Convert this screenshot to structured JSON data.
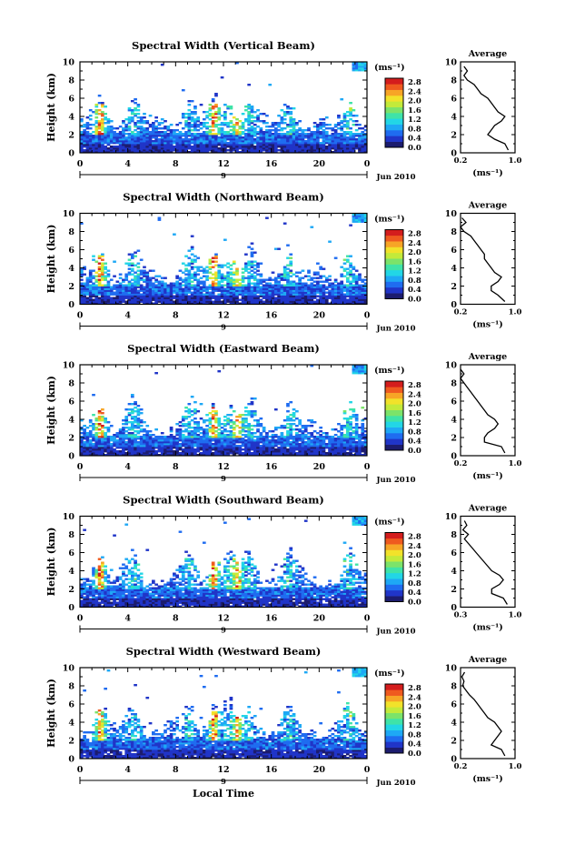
{
  "figure": {
    "xlabel": "Local Time",
    "x_tick_labels": [
      "0",
      "4",
      "8",
      "12",
      "16",
      "20",
      "0"
    ],
    "date_label": "Jun 2010",
    "date_marker": "9",
    "profile_title": "Average",
    "colorbar_unit": "(ms⁻¹)",
    "colorbar_ticks": [
      "2.8",
      "2.4",
      "2.0",
      "1.6",
      "1.2",
      "0.8",
      "0.4",
      "0.0"
    ],
    "colormap": [
      "#1c1c6e",
      "#2035c8",
      "#1f6cf0",
      "#1ea8f5",
      "#22d6e6",
      "#3fe3a8",
      "#7ce36a",
      "#c3ea3a",
      "#f2e22a",
      "#f7a526",
      "#ef5a1f",
      "#d41d1d"
    ]
  },
  "chart_data": [
    {
      "type": "heatmap",
      "title": "Spectral Width (Vertical Beam)",
      "ylabel": "Height (km)",
      "xlabel": "",
      "xlim": [
        0,
        24
      ],
      "ylim": [
        0,
        10
      ],
      "y_tick_labels": [
        "0",
        "2",
        "4",
        "6",
        "8",
        "10"
      ],
      "colorbar_range": [
        0.0,
        3.0
      ],
      "profile": {
        "xlabel": "(ms⁻¹)",
        "x_tick_labels": [
          "0.2",
          "1.0"
        ],
        "xlim": [
          0.2,
          1.0
        ],
        "y_tick_labels": [
          "0",
          "2",
          "4",
          "6",
          "8",
          "10"
        ],
        "heights": [
          0.3,
          1.0,
          1.5,
          2.0,
          2.5,
          3.0,
          3.5,
          4.0,
          4.5,
          5.0,
          5.5,
          6.0,
          6.5,
          7.0,
          7.5,
          8.0,
          8.5,
          9.0,
          9.5
        ],
        "values": [
          0.9,
          0.85,
          0.7,
          0.6,
          0.65,
          0.7,
          0.8,
          0.85,
          0.75,
          0.7,
          0.65,
          0.6,
          0.5,
          0.45,
          0.4,
          0.3,
          0.25,
          0.3,
          0.25
        ]
      }
    },
    {
      "type": "heatmap",
      "title": "Spectral Width (Northward Beam)",
      "ylabel": "Height (km)",
      "xlabel": "",
      "xlim": [
        0,
        24
      ],
      "ylim": [
        0,
        10
      ],
      "y_tick_labels": [
        "0",
        "2",
        "4",
        "6",
        "8",
        "10"
      ],
      "colorbar_range": [
        0.0,
        3.0
      ],
      "profile": {
        "xlabel": "(ms⁻¹)",
        "x_tick_labels": [
          "0.2",
          "1.0"
        ],
        "xlim": [
          0.2,
          1.0
        ],
        "y_tick_labels": [
          "0",
          "2",
          "4",
          "6",
          "8",
          "10"
        ],
        "heights": [
          0.3,
          1.0,
          1.5,
          2.0,
          2.5,
          3.0,
          3.5,
          4.0,
          4.5,
          5.0,
          5.5,
          6.0,
          6.5,
          7.0,
          7.5,
          8.0,
          8.5,
          9.0,
          9.5
        ],
        "values": [
          0.85,
          0.75,
          0.65,
          0.65,
          0.75,
          0.8,
          0.7,
          0.65,
          0.6,
          0.55,
          0.55,
          0.5,
          0.45,
          0.4,
          0.35,
          0.25,
          0.2,
          0.28,
          0.22
        ]
      }
    },
    {
      "type": "heatmap",
      "title": "Spectral Width (Eastward Beam)",
      "ylabel": "Height (km)",
      "xlabel": "",
      "xlim": [
        0,
        24
      ],
      "ylim": [
        0,
        10
      ],
      "y_tick_labels": [
        "0",
        "2",
        "4",
        "6",
        "8",
        "10"
      ],
      "colorbar_range": [
        0.0,
        3.0
      ],
      "profile": {
        "xlabel": "(ms⁻¹)",
        "x_tick_labels": [
          "0.2",
          "1.0"
        ],
        "xlim": [
          0.2,
          1.0
        ],
        "y_tick_labels": [
          "0",
          "2",
          "4",
          "6",
          "8",
          "10"
        ],
        "heights": [
          0.3,
          1.0,
          1.5,
          2.0,
          2.5,
          3.0,
          3.5,
          4.0,
          4.5,
          5.0,
          5.5,
          6.0,
          6.5,
          7.0,
          7.5,
          8.0,
          8.5,
          9.0,
          9.5
        ],
        "values": [
          0.85,
          0.8,
          0.55,
          0.55,
          0.6,
          0.7,
          0.75,
          0.7,
          0.6,
          0.55,
          0.5,
          0.45,
          0.4,
          0.35,
          0.3,
          0.25,
          0.2,
          0.25,
          0.2
        ]
      }
    },
    {
      "type": "heatmap",
      "title": "Spectral Width (Southward Beam)",
      "ylabel": "Height (km)",
      "xlabel": "",
      "xlim": [
        0,
        24
      ],
      "ylim": [
        0,
        10
      ],
      "y_tick_labels": [
        "0",
        "2",
        "4",
        "6",
        "8",
        "10"
      ],
      "colorbar_range": [
        0.0,
        3.0
      ],
      "profile": {
        "xlabel": "(ms⁻¹)",
        "x_tick_labels": [
          "0.3",
          "1.0"
        ],
        "xlim": [
          0.3,
          1.0
        ],
        "y_tick_labels": [
          "0",
          "2",
          "4",
          "6",
          "8",
          "10"
        ],
        "heights": [
          0.3,
          1.0,
          1.5,
          2.0,
          2.5,
          3.0,
          3.5,
          4.0,
          4.5,
          5.0,
          5.5,
          6.0,
          6.5,
          7.0,
          7.5,
          8.0,
          8.5,
          9.0,
          9.5
        ],
        "values": [
          0.9,
          0.85,
          0.7,
          0.7,
          0.8,
          0.85,
          0.8,
          0.7,
          0.65,
          0.6,
          0.55,
          0.5,
          0.45,
          0.4,
          0.35,
          0.4,
          0.33,
          0.38,
          0.35
        ]
      }
    },
    {
      "type": "heatmap",
      "title": "Spectral Width (Westward Beam)",
      "ylabel": "Height (km)",
      "xlabel": "Local Time",
      "xlim": [
        0,
        24
      ],
      "ylim": [
        0,
        10
      ],
      "y_tick_labels": [
        "0",
        "2",
        "4",
        "6",
        "8",
        "10"
      ],
      "colorbar_range": [
        0.0,
        3.0
      ],
      "profile": {
        "xlabel": "(ms⁻¹)",
        "x_tick_labels": [
          "0.2",
          "1.0"
        ],
        "xlim": [
          0.2,
          1.0
        ],
        "y_tick_labels": [
          "0",
          "2",
          "4",
          "6",
          "8",
          "10"
        ],
        "heights": [
          0.3,
          1.0,
          1.5,
          2.0,
          2.5,
          3.0,
          3.5,
          4.0,
          4.5,
          5.0,
          5.5,
          6.0,
          6.5,
          7.0,
          7.5,
          8.0,
          8.5,
          9.0,
          9.5
        ],
        "values": [
          0.85,
          0.8,
          0.65,
          0.7,
          0.75,
          0.8,
          0.75,
          0.7,
          0.6,
          0.55,
          0.5,
          0.45,
          0.4,
          0.33,
          0.28,
          0.23,
          0.25,
          0.22,
          0.26
        ]
      }
    }
  ]
}
